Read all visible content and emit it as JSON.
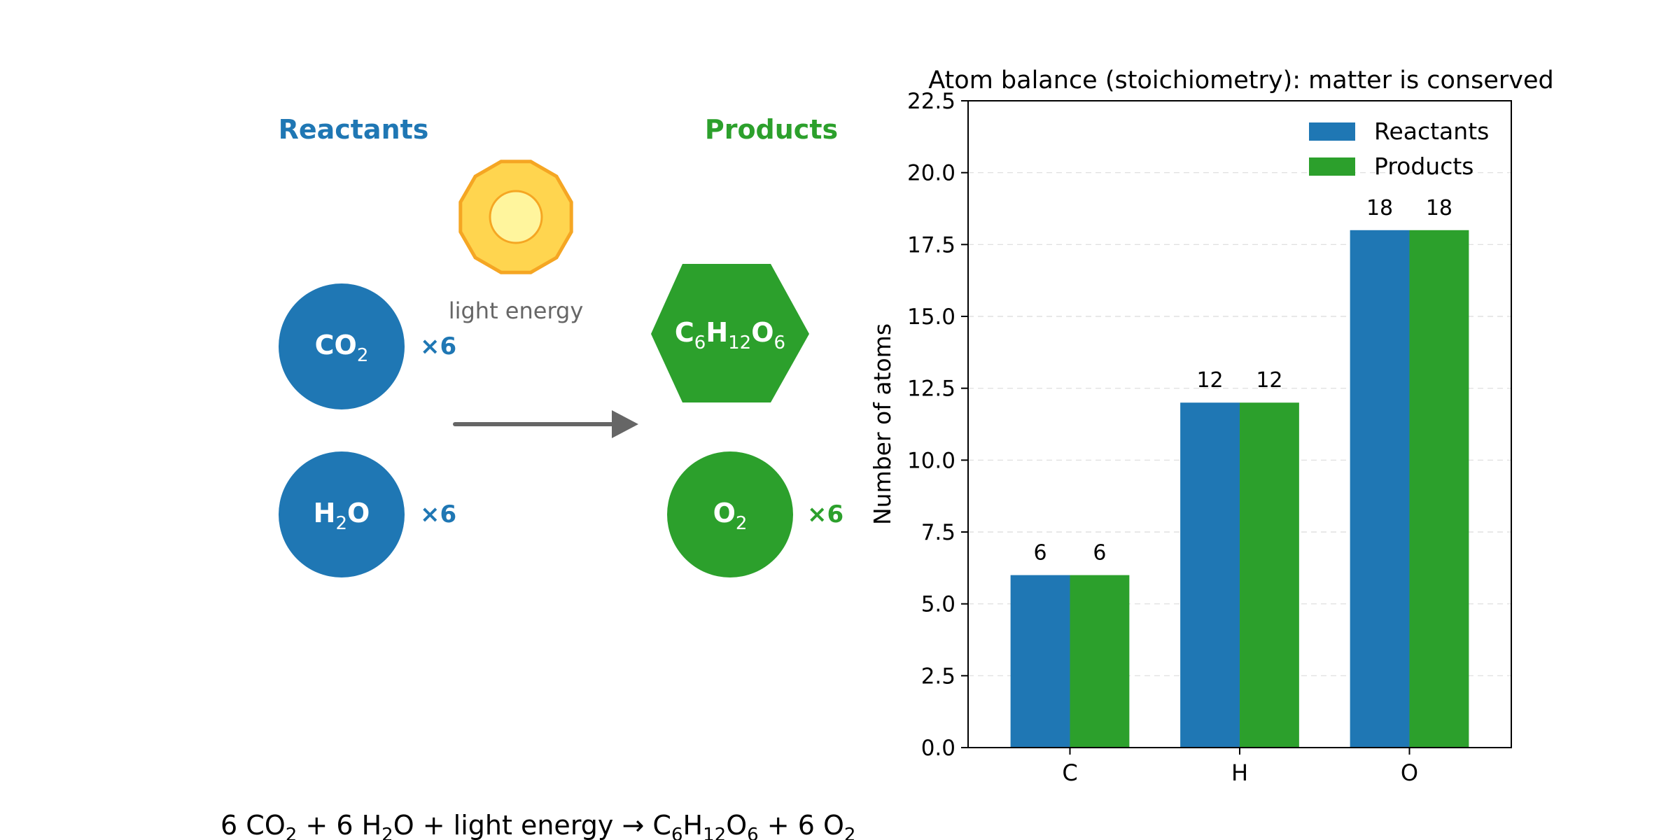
{
  "colors": {
    "reactant": "#1f77b4",
    "product": "#2ca02c",
    "sun_outer": "#ffd54f",
    "sun_stroke": "#f5a623",
    "sun_inner": "#fff59d",
    "arrow": "#666666",
    "light_text": "#666666"
  },
  "diagram": {
    "reactants_heading": "Reactants",
    "products_heading": "Products",
    "light_label": "light energy",
    "molecules": [
      {
        "id": "co2",
        "symbol": "CO",
        "sub": "2",
        "tail": "",
        "multiplier": "×6",
        "side": "reactant",
        "icon": "circle"
      },
      {
        "id": "h2o",
        "symbol": "H",
        "sub": "2",
        "tail": "O",
        "multiplier": "×6",
        "side": "reactant",
        "icon": "circle"
      },
      {
        "id": "glucose",
        "symbol": "C₆H₁₂O₆",
        "multiplier": "",
        "side": "product",
        "icon": "hexagon"
      },
      {
        "id": "o2",
        "symbol": "O",
        "sub": "2",
        "tail": "",
        "multiplier": "×6",
        "side": "product",
        "icon": "circle"
      }
    ],
    "equation": {
      "parts": [
        "6",
        "CO",
        "2",
        "+",
        "6",
        "H",
        "2",
        "O",
        "+",
        "light energy",
        "→",
        "C",
        "6",
        "H",
        "12",
        "O",
        "6",
        "+",
        "6",
        "O",
        "2"
      ]
    }
  },
  "chart_data": {
    "type": "bar",
    "title": "Atom balance (stoichiometry): matter is conserved",
    "xlabel": "",
    "ylabel": "Number of atoms",
    "categories": [
      "C",
      "H",
      "O"
    ],
    "series": [
      {
        "name": "Reactants",
        "values": [
          6,
          12,
          18
        ],
        "color": "#1f77b4"
      },
      {
        "name": "Products",
        "values": [
          6,
          12,
          18
        ],
        "color": "#2ca02c"
      }
    ],
    "ylim": [
      0,
      22.5
    ],
    "yticks": [
      "0.0",
      "2.5",
      "5.0",
      "7.5",
      "10.0",
      "12.5",
      "15.0",
      "17.5",
      "20.0",
      "22.5"
    ],
    "grid": "y-dashed",
    "legend": "top-right",
    "data_labels": true
  }
}
